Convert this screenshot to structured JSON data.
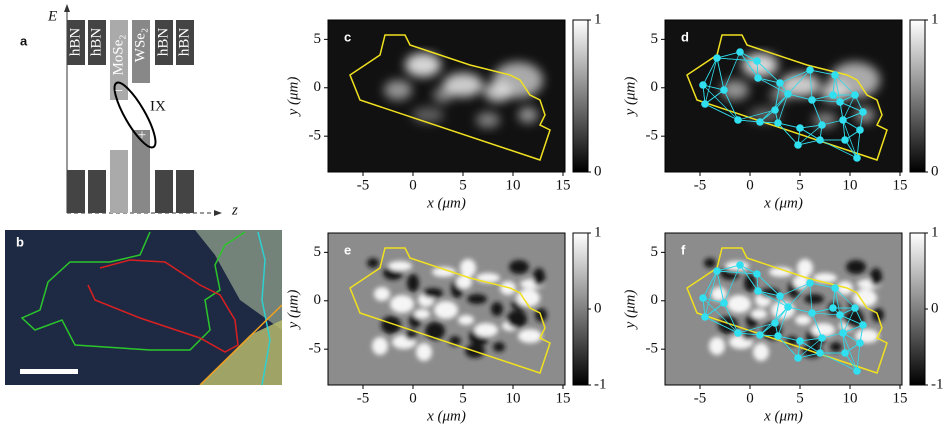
{
  "panel_a": {
    "label": "a",
    "y_label": "E",
    "x_label": "z",
    "layers": [
      "hBN",
      "hBN",
      "MoSe₂",
      "WSe₂",
      "hBN",
      "hBN"
    ],
    "exciton": "IX",
    "minus": "−",
    "plus": "+"
  },
  "panel_b": {
    "label": "b"
  },
  "maps": [
    {
      "label": "c",
      "xlabel": "x (μm)",
      "ylabel": "y (μm)",
      "xlim": [
        -8.5,
        15.2
      ],
      "ylim": [
        -8.7,
        7
      ],
      "xticks": [
        -5,
        0,
        5,
        10,
        15
      ],
      "yticks": [
        -5,
        0,
        5
      ],
      "colorbar_ticks": [
        0,
        1
      ],
      "colorbar_lim": [
        0,
        1
      ],
      "kind": "pl",
      "network": false
    },
    {
      "label": "d",
      "xlabel": "x (μm)",
      "ylabel": "y (μm)",
      "xlim": [
        -8.5,
        15.2
      ],
      "ylim": [
        -8.7,
        7
      ],
      "xticks": [
        -5,
        0,
        5,
        10,
        15
      ],
      "yticks": [
        -5,
        0,
        5
      ],
      "colorbar_ticks": [
        0,
        1
      ],
      "colorbar_lim": [
        0,
        1
      ],
      "kind": "pl",
      "network": true
    },
    {
      "label": "e",
      "xlabel": "x (μm)",
      "ylabel": "y (μm)",
      "xlim": [
        -8.5,
        15.2
      ],
      "ylim": [
        -8.7,
        7
      ],
      "xticks": [
        -5,
        0,
        5,
        10,
        15
      ],
      "yticks": [
        -5,
        0,
        5
      ],
      "colorbar_ticks": [
        -1,
        0,
        1
      ],
      "colorbar_lim": [
        -1,
        1
      ],
      "kind": "filtered",
      "network": false
    },
    {
      "label": "f",
      "xlabel": "x (μm)",
      "ylabel": "y (μm)",
      "xlim": [
        -8.5,
        15.2
      ],
      "ylim": [
        -8.7,
        7
      ],
      "xticks": [
        -5,
        0,
        5,
        10,
        15
      ],
      "yticks": [
        -5,
        0,
        5
      ],
      "colorbar_ticks": [
        -1,
        0,
        1
      ],
      "colorbar_lim": [
        -1,
        1
      ],
      "kind": "filtered",
      "network": true
    }
  ]
}
